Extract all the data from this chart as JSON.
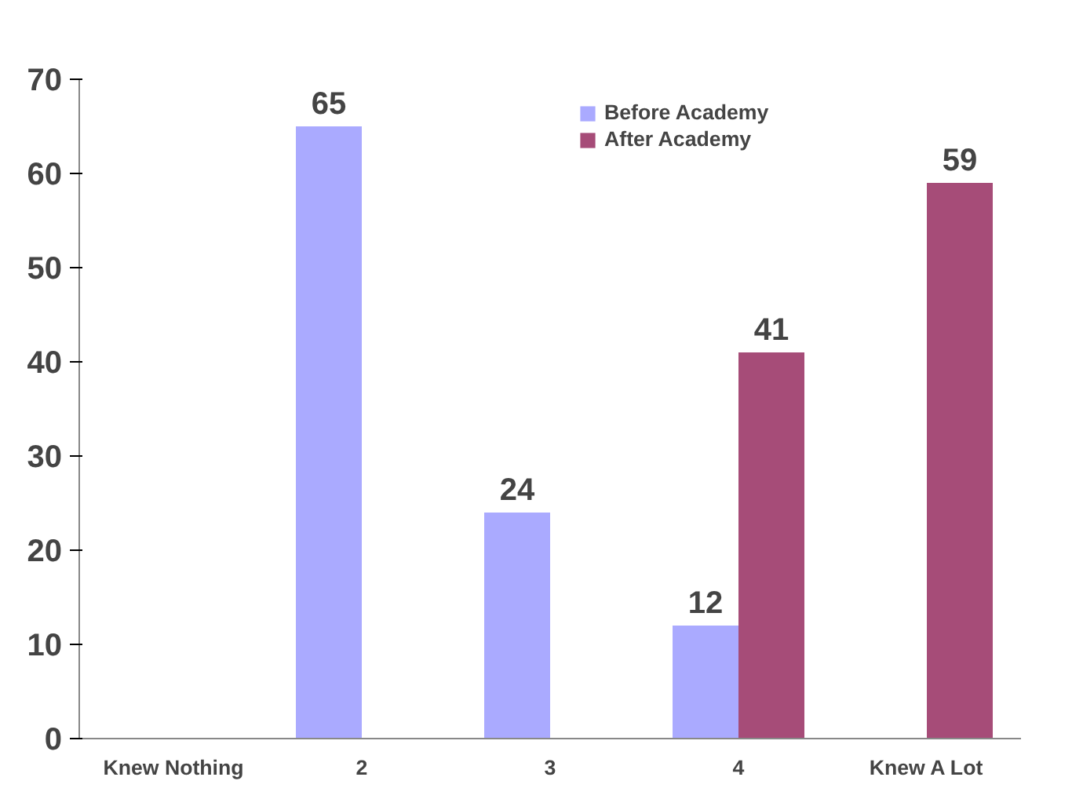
{
  "chart_data": {
    "type": "bar",
    "categories": [
      "Knew Nothing",
      "2",
      "3",
      "4",
      "Knew A Lot"
    ],
    "series": [
      {
        "name": "Before Academy",
        "color": "#aaaaff",
        "values": [
          null,
          65,
          24,
          12,
          null
        ]
      },
      {
        "name": "After Academy",
        "color": "#a64c78",
        "values": [
          null,
          null,
          null,
          41,
          59
        ]
      }
    ],
    "ylim": [
      0,
      70
    ],
    "yticks": [
      0,
      10,
      20,
      30,
      40,
      50,
      60,
      70
    ],
    "grid": false,
    "legend": "top",
    "data_labels": true
  }
}
